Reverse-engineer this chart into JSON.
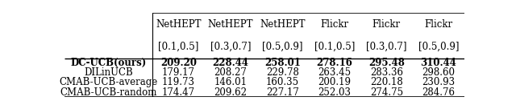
{
  "col_headers_line1": [
    "NetHEPT",
    "NetHEPT",
    "NetHEPT",
    "Flickr",
    "Flickr",
    "Flickr"
  ],
  "col_headers_line2": [
    "[0.1,0.5]",
    "[0.3,0.7]",
    "[0.5,0.9]",
    "[0.1,0.5]",
    "[0.3,0.7]",
    "[0.5,0.9]"
  ],
  "row_labels": [
    "DC-UCB(ours)",
    "DILinUCB",
    "CMAB-UCB-average",
    "CMAB-UCB-random"
  ],
  "table_data": [
    [
      "209.20",
      "228.44",
      "258.01",
      "278.16",
      "295.48",
      "310.44"
    ],
    [
      "179.17",
      "208.27",
      "229.78",
      "263.45",
      "283.36",
      "298.60"
    ],
    [
      "119.73",
      "146.01",
      "160.35",
      "200.19",
      "220.18",
      "230.93"
    ],
    [
      "174.47",
      "209.62",
      "227.17",
      "252.03",
      "274.75",
      "284.76"
    ]
  ],
  "bold_row": 0,
  "figsize": [
    6.4,
    1.36
  ],
  "dpi": 100,
  "background_color": "#ffffff",
  "font_size": 8.5,
  "header_font_size": 8.5
}
